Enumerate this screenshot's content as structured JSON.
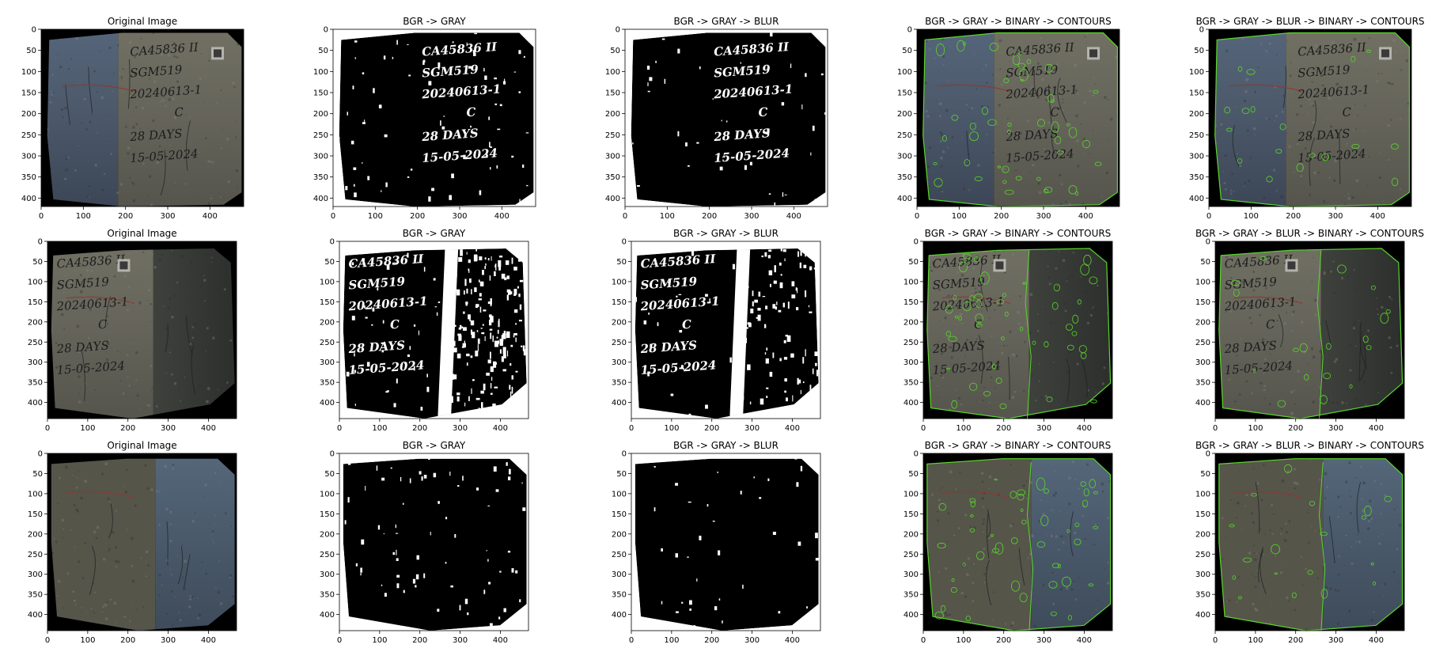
{
  "figure": {
    "columns": [
      "original",
      "gray",
      "gray-blur",
      "binary-contours",
      "blur-binary-contours"
    ]
  },
  "chart_data": [
    {
      "type": "image",
      "row": 1,
      "col": 1,
      "panel": "original",
      "title": "Original Image",
      "xticks": [
        0,
        100,
        200,
        300,
        400
      ],
      "yticks": [
        0,
        50,
        100,
        150,
        200,
        250,
        300,
        350,
        400
      ],
      "xlim": [
        0,
        480
      ],
      "ylim": [
        420,
        0
      ]
    },
    {
      "type": "image",
      "row": 1,
      "col": 2,
      "panel": "gray",
      "title": "BGR -> GRAY",
      "xticks": [
        0,
        100,
        200,
        300,
        400
      ],
      "yticks": [
        0,
        50,
        100,
        150,
        200,
        250,
        300,
        350,
        400
      ],
      "xlim": [
        0,
        480
      ],
      "ylim": [
        420,
        0
      ]
    },
    {
      "type": "image",
      "row": 1,
      "col": 3,
      "panel": "gray-blur",
      "title": "BGR -> GRAY -> BLUR",
      "xticks": [
        0,
        100,
        200,
        300,
        400
      ],
      "yticks": [
        0,
        50,
        100,
        150,
        200,
        250,
        300,
        350,
        400
      ],
      "xlim": [
        0,
        480
      ],
      "ylim": [
        420,
        0
      ]
    },
    {
      "type": "image",
      "row": 1,
      "col": 4,
      "panel": "binary-contours",
      "title": "BGR -> GRAY -> BINARY -> CONTOURS",
      "xticks": [
        0,
        100,
        200,
        300,
        400
      ],
      "yticks": [
        0,
        50,
        100,
        150,
        200,
        250,
        300,
        350,
        400
      ],
      "xlim": [
        0,
        480
      ],
      "ylim": [
        420,
        0
      ]
    },
    {
      "type": "image",
      "row": 1,
      "col": 5,
      "panel": "blur-binary-contours",
      "title": "BGR -> GRAY -> BLUR -> BINARY -> CONTOURS",
      "xticks": [
        0,
        100,
        200,
        300,
        400
      ],
      "yticks": [
        0,
        50,
        100,
        150,
        200,
        250,
        300,
        350,
        400
      ],
      "xlim": [
        0,
        480
      ],
      "ylim": [
        420,
        0
      ]
    },
    {
      "type": "image",
      "row": 2,
      "col": 1,
      "panel": "original",
      "title": "Original Image",
      "xticks": [
        0,
        100,
        200,
        300,
        400
      ],
      "yticks": [
        0,
        50,
        100,
        150,
        200,
        250,
        300,
        350,
        400
      ],
      "xlim": [
        0,
        470
      ],
      "ylim": [
        440,
        0
      ]
    },
    {
      "type": "image",
      "row": 2,
      "col": 2,
      "panel": "gray",
      "title": "BGR -> GRAY",
      "xticks": [
        0,
        100,
        200,
        300,
        400
      ],
      "yticks": [
        0,
        50,
        100,
        150,
        200,
        250,
        300,
        350,
        400
      ],
      "xlim": [
        0,
        470
      ],
      "ylim": [
        440,
        0
      ]
    },
    {
      "type": "image",
      "row": 2,
      "col": 3,
      "panel": "gray-blur",
      "title": "BGR -> GRAY -> BLUR",
      "xticks": [
        0,
        100,
        200,
        300,
        400
      ],
      "yticks": [
        0,
        50,
        100,
        150,
        200,
        250,
        300,
        350,
        400
      ],
      "xlim": [
        0,
        470
      ],
      "ylim": [
        440,
        0
      ]
    },
    {
      "type": "image",
      "row": 2,
      "col": 4,
      "panel": "binary-contours",
      "title": "BGR -> GRAY -> BINARY -> CONTOURS",
      "xticks": [
        0,
        100,
        200,
        300,
        400
      ],
      "yticks": [
        0,
        50,
        100,
        150,
        200,
        250,
        300,
        350,
        400
      ],
      "xlim": [
        0,
        470
      ],
      "ylim": [
        440,
        0
      ]
    },
    {
      "type": "image",
      "row": 2,
      "col": 5,
      "panel": "blur-binary-contours",
      "title": "BGR -> GRAY -> BLUR -> BINARY -> CONTOURS",
      "xticks": [
        0,
        100,
        200,
        300,
        400
      ],
      "yticks": [
        0,
        50,
        100,
        150,
        200,
        250,
        300,
        350,
        400
      ],
      "xlim": [
        0,
        470
      ],
      "ylim": [
        440,
        0
      ]
    },
    {
      "type": "image",
      "row": 3,
      "col": 1,
      "panel": "original",
      "title": "Original Image",
      "xticks": [
        0,
        100,
        200,
        300,
        400
      ],
      "yticks": [
        0,
        50,
        100,
        150,
        200,
        250,
        300,
        350,
        400
      ],
      "xlim": [
        0,
        470
      ],
      "ylim": [
        440,
        0
      ]
    },
    {
      "type": "image",
      "row": 3,
      "col": 2,
      "panel": "gray",
      "title": "BGR -> GRAY",
      "xticks": [
        0,
        100,
        200,
        300,
        400
      ],
      "yticks": [
        0,
        50,
        100,
        150,
        200,
        250,
        300,
        350,
        400
      ],
      "xlim": [
        0,
        470
      ],
      "ylim": [
        440,
        0
      ]
    },
    {
      "type": "image",
      "row": 3,
      "col": 3,
      "panel": "gray-blur",
      "title": "BGR -> GRAY -> BLUR",
      "xticks": [
        0,
        100,
        200,
        300,
        400
      ],
      "yticks": [
        0,
        50,
        100,
        150,
        200,
        250,
        300,
        350,
        400
      ],
      "xlim": [
        0,
        470
      ],
      "ylim": [
        440,
        0
      ]
    },
    {
      "type": "image",
      "row": 3,
      "col": 4,
      "panel": "binary-contours",
      "title": "BGR -> GRAY -> BINARY -> CONTOURS",
      "xticks": [
        0,
        100,
        200,
        300,
        400
      ],
      "yticks": [
        0,
        50,
        100,
        150,
        200,
        250,
        300,
        350,
        400
      ],
      "xlim": [
        0,
        470
      ],
      "ylim": [
        440,
        0
      ]
    },
    {
      "type": "image",
      "row": 3,
      "col": 5,
      "panel": "blur-binary-contours",
      "title": "BGR -> GRAY -> BLUR -> BINARY -> CONTOURS",
      "xticks": [
        0,
        100,
        200,
        300,
        400
      ],
      "yticks": [
        0,
        50,
        100,
        150,
        200,
        250,
        300,
        350,
        400
      ],
      "xlim": [
        0,
        470
      ],
      "ylim": [
        440,
        0
      ]
    }
  ],
  "specimens": [
    {
      "label_lines": [
        "CA45836 II",
        "SGM519",
        "20240613-1",
        "C",
        "28 DAYS",
        "15-05-2024"
      ]
    },
    {
      "label_lines": [
        "CA45836 II",
        "SGM519",
        "20240613-1",
        "C",
        "28 DAYS",
        "15-05-2024"
      ]
    },
    {
      "label_lines": []
    }
  ],
  "colors": {
    "contour": "#5ad62b",
    "axis": "#000000",
    "background": "#ffffff",
    "image_bg": "#000000"
  }
}
